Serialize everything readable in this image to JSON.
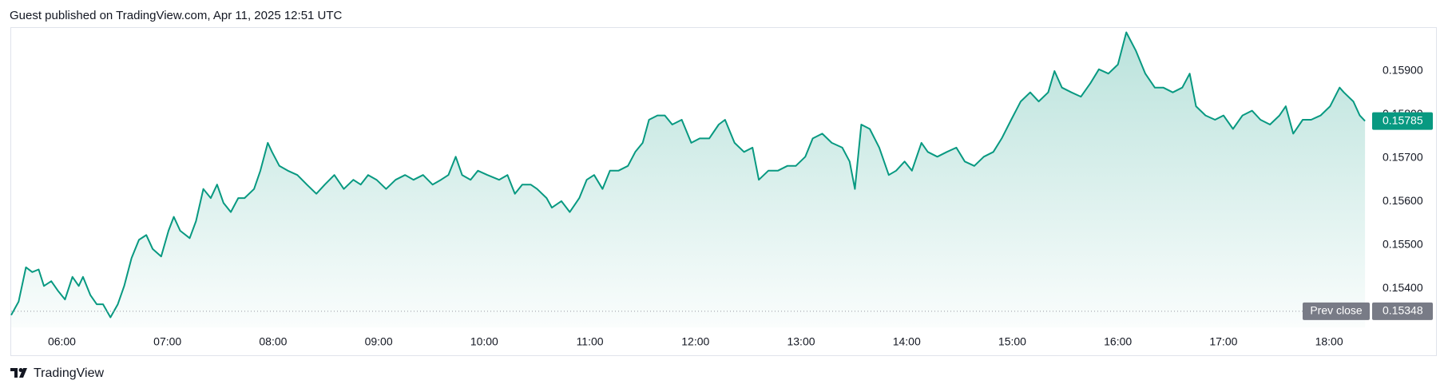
{
  "chart_data": {
    "type": "area",
    "header": "Guest published on TradingView.com, Apr 11, 2025 12:51 UTC",
    "brand": "TradingView",
    "color": "#089981",
    "x": [
      5.52,
      5.59,
      5.66,
      5.72,
      5.78,
      5.83,
      5.9,
      5.96,
      6.03,
      6.1,
      6.16,
      6.2,
      6.27,
      6.33,
      6.39,
      6.46,
      6.53,
      6.59,
      6.66,
      6.73,
      6.8,
      6.86,
      6.94,
      7.01,
      7.06,
      7.12,
      7.21,
      7.27,
      7.34,
      7.41,
      7.47,
      7.53,
      7.6,
      7.67,
      7.73,
      7.82,
      7.88,
      7.95,
      7.99,
      8.06,
      8.14,
      8.23,
      8.32,
      8.41,
      8.49,
      8.58,
      8.67,
      8.76,
      8.83,
      8.9,
      8.98,
      9.07,
      9.16,
      9.25,
      9.33,
      9.42,
      9.51,
      9.59,
      9.66,
      9.73,
      9.79,
      9.87,
      9.94,
      10.03,
      10.14,
      10.22,
      10.29,
      10.36,
      10.44,
      10.5,
      10.59,
      10.64,
      10.73,
      10.81,
      10.9,
      10.97,
      11.04,
      11.12,
      11.19,
      11.27,
      11.36,
      11.43,
      11.5,
      11.56,
      11.64,
      11.71,
      11.78,
      11.87,
      11.96,
      12.04,
      12.13,
      12.22,
      12.28,
      12.37,
      12.46,
      12.54,
      12.6,
      12.69,
      12.78,
      12.87,
      12.95,
      13.04,
      13.11,
      13.2,
      13.29,
      13.39,
      13.46,
      13.51,
      13.57,
      13.65,
      13.74,
      13.83,
      13.9,
      13.98,
      14.05,
      14.14,
      14.2,
      14.29,
      14.38,
      14.47,
      14.55,
      14.64,
      14.73,
      14.82,
      14.9,
      14.99,
      15.08,
      15.17,
      15.25,
      15.34,
      15.4,
      15.47,
      15.56,
      15.65,
      15.74,
      15.82,
      15.91,
      16.0,
      16.08,
      16.17,
      16.26,
      16.35,
      16.43,
      16.52,
      16.61,
      16.68,
      16.74,
      16.83,
      16.92,
      17.0,
      17.09,
      17.18,
      17.27,
      17.35,
      17.44,
      17.53,
      17.59,
      17.66,
      17.75,
      17.83,
      17.92,
      18.01,
      18.1,
      18.14,
      18.23,
      18.29,
      18.34
    ],
    "values": [
      0.15339,
      0.1537,
      0.15449,
      0.15438,
      0.15444,
      0.15406,
      0.15417,
      0.15396,
      0.15375,
      0.15427,
      0.15406,
      0.15427,
      0.15385,
      0.15364,
      0.15364,
      0.15334,
      0.15364,
      0.15406,
      0.1547,
      0.15512,
      0.15523,
      0.15491,
      0.15474,
      0.15533,
      0.15565,
      0.15533,
      0.15516,
      0.15555,
      0.15629,
      0.15608,
      0.15639,
      0.15597,
      0.15576,
      0.15608,
      0.15608,
      0.15629,
      0.15671,
      0.15735,
      0.15714,
      0.15682,
      0.15671,
      0.15661,
      0.15639,
      0.15618,
      0.15639,
      0.15661,
      0.15629,
      0.1565,
      0.15639,
      0.15661,
      0.1565,
      0.15629,
      0.1565,
      0.15661,
      0.1565,
      0.15661,
      0.15639,
      0.1565,
      0.15661,
      0.15703,
      0.15661,
      0.1565,
      0.15671,
      0.15661,
      0.1565,
      0.15661,
      0.15618,
      0.15639,
      0.15639,
      0.15629,
      0.15608,
      0.15586,
      0.15601,
      0.15576,
      0.15608,
      0.1565,
      0.15661,
      0.15629,
      0.15671,
      0.15671,
      0.15682,
      0.15714,
      0.15735,
      0.15788,
      0.15798,
      0.15798,
      0.15777,
      0.15788,
      0.15735,
      0.15745,
      0.15745,
      0.15777,
      0.15788,
      0.15735,
      0.15714,
      0.15724,
      0.1565,
      0.15671,
      0.15671,
      0.15682,
      0.15682,
      0.15703,
      0.15745,
      0.15756,
      0.15735,
      0.15724,
      0.15692,
      0.15629,
      0.15777,
      0.15767,
      0.15724,
      0.15661,
      0.15671,
      0.15692,
      0.15671,
      0.15735,
      0.15714,
      0.15703,
      0.15714,
      0.15724,
      0.15692,
      0.15682,
      0.15703,
      0.15714,
      0.15745,
      0.15788,
      0.1583,
      0.15851,
      0.1583,
      0.15851,
      0.159,
      0.15862,
      0.15851,
      0.15841,
      0.15872,
      0.15904,
      0.15894,
      0.15915,
      0.15989,
      0.15947,
      0.15894,
      0.15862,
      0.15862,
      0.15851,
      0.15862,
      0.15894,
      0.15819,
      0.15798,
      0.15788,
      0.15798,
      0.15767,
      0.15798,
      0.15809,
      0.15788,
      0.15777,
      0.15798,
      0.15819,
      0.15756,
      0.15788,
      0.15788,
      0.15798,
      0.15819,
      0.15862,
      0.15851,
      0.1583,
      0.15798,
      0.15785
    ],
    "xlim": [
      5.52,
      18.4
    ],
    "xticks": [
      {
        "value": 6,
        "label": "06:00"
      },
      {
        "value": 7,
        "label": "07:00"
      },
      {
        "value": 8,
        "label": "08:00"
      },
      {
        "value": 9,
        "label": "09:00"
      },
      {
        "value": 10,
        "label": "10:00"
      },
      {
        "value": 11,
        "label": "11:00"
      },
      {
        "value": 12,
        "label": "12:00"
      },
      {
        "value": 13,
        "label": "13:00"
      },
      {
        "value": 14,
        "label": "14:00"
      },
      {
        "value": 15,
        "label": "15:00"
      },
      {
        "value": 16,
        "label": "16:00"
      },
      {
        "value": 17,
        "label": "17:00"
      },
      {
        "value": 18,
        "label": "18:00"
      }
    ],
    "ylim": [
      0.15311,
      0.15999
    ],
    "yticks": [
      {
        "value": 0.154,
        "label": "0.15400"
      },
      {
        "value": 0.155,
        "label": "0.15500"
      },
      {
        "value": 0.156,
        "label": "0.15600"
      },
      {
        "value": 0.157,
        "label": "0.15700"
      },
      {
        "value": 0.158,
        "label": "0.15800"
      },
      {
        "value": 0.159,
        "label": "0.15900"
      }
    ],
    "last_value": 0.15785,
    "prev_close": {
      "label": "Prev close",
      "value": 0.15348
    }
  }
}
